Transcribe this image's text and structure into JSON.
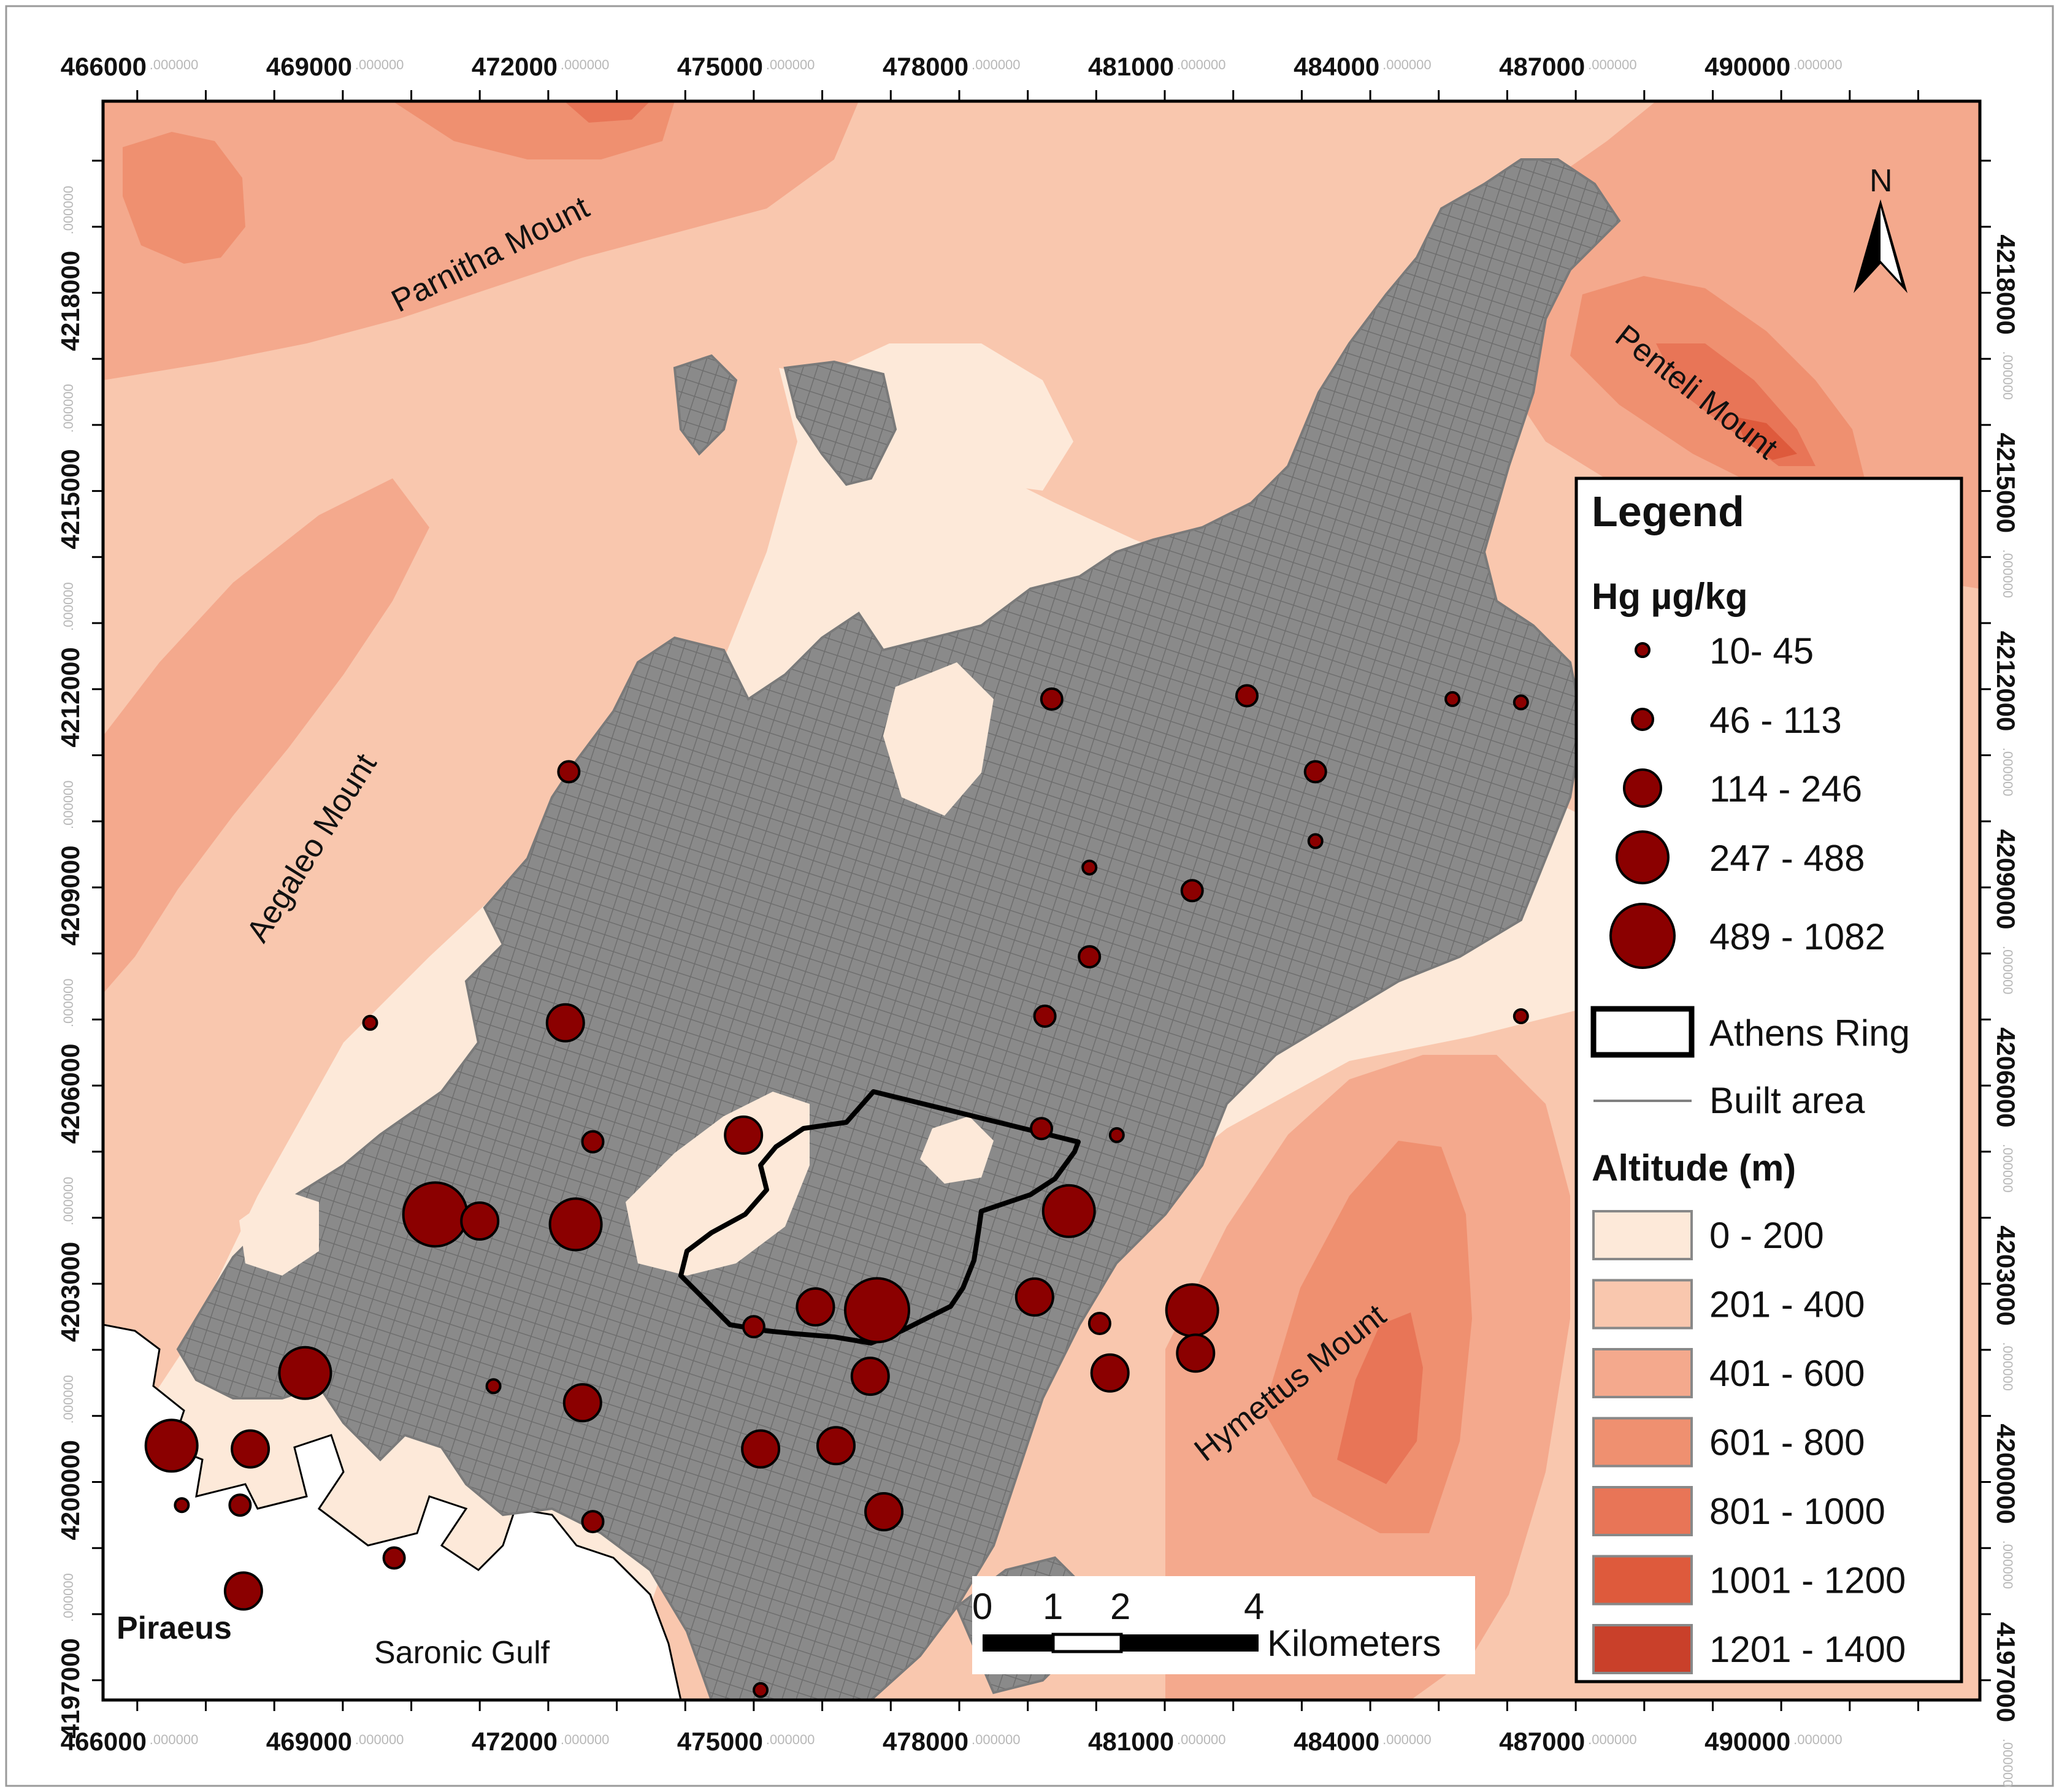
{
  "axis": {
    "x_ticks": [
      466000,
      469000,
      472000,
      475000,
      478000,
      481000,
      484000,
      487000,
      490000
    ],
    "y_ticks": [
      4218000,
      4215000,
      4212000,
      4209000,
      4206000,
      4203000,
      4200000,
      4197000
    ],
    "decimal_suffix": ".000000",
    "x_range": [
      465500,
      492900
    ],
    "y_range": [
      4196700,
      4220900
    ]
  },
  "places": {
    "parnitha": "Parnitha Mount",
    "penteli": "Penteli Mount",
    "aegaleo": "Aegaleo Mount",
    "hymettus": "Hymettus Mount",
    "piraeus": "Piraeus",
    "saronic": "Saronic Gulf"
  },
  "north_label": "N",
  "legend": {
    "title": "Legend",
    "hg_title": "Hg µg/kg",
    "hg_classes": [
      "10- 45",
      "46 - 113",
      "114 - 246",
      "247 - 488",
      "489 - 1082"
    ],
    "ring_label": "Athens Ring",
    "built_label": "Built area",
    "alt_title": "Altitude (m)",
    "alt_classes": [
      {
        "label": "0 - 200",
        "color": "#fde9d9"
      },
      {
        "label": "201 - 400",
        "color": "#f9c7ae"
      },
      {
        "label": "401 - 600",
        "color": "#f4a98d"
      },
      {
        "label": "601 - 800",
        "color": "#ef9070"
      },
      {
        "label": "801 - 1000",
        "color": "#e87557"
      },
      {
        "label": "1001 - 1200",
        "color": "#de5a3c"
      },
      {
        "label": "1201 - 1400",
        "color": "#c9402a"
      }
    ]
  },
  "scalebar": {
    "ticks": [
      "0",
      "1",
      "2",
      "4"
    ],
    "unit": "Kilometers"
  },
  "colors": {
    "hg_fill": "#8b0000",
    "built": "#808080",
    "ring": "#000000"
  },
  "samples": [
    {
      "x": 479350,
      "y": 4211850,
      "cls": 1
    },
    {
      "x": 482200,
      "y": 4211900,
      "cls": 1
    },
    {
      "x": 485200,
      "y": 4211850,
      "cls": 0
    },
    {
      "x": 486200,
      "y": 4211800,
      "cls": 0
    },
    {
      "x": 472300,
      "y": 4210750,
      "cls": 1
    },
    {
      "x": 483200,
      "y": 4210750,
      "cls": 1
    },
    {
      "x": 483200,
      "y": 4209700,
      "cls": 0
    },
    {
      "x": 479900,
      "y": 4209300,
      "cls": 0
    },
    {
      "x": 481400,
      "y": 4208950,
      "cls": 1
    },
    {
      "x": 479900,
      "y": 4207950,
      "cls": 1
    },
    {
      "x": 469400,
      "y": 4206950,
      "cls": 0
    },
    {
      "x": 472250,
      "y": 4206950,
      "cls": 2
    },
    {
      "x": 479250,
      "y": 4207050,
      "cls": 1
    },
    {
      "x": 486200,
      "y": 4207050,
      "cls": 0
    },
    {
      "x": 479200,
      "y": 4205350,
      "cls": 1
    },
    {
      "x": 480300,
      "y": 4205250,
      "cls": 0
    },
    {
      "x": 472650,
      "y": 4205150,
      "cls": 1
    },
    {
      "x": 474850,
      "y": 4205250,
      "cls": 2
    },
    {
      "x": 470350,
      "y": 4204050,
      "cls": 4
    },
    {
      "x": 471000,
      "y": 4203950,
      "cls": 2
    },
    {
      "x": 472400,
      "y": 4203900,
      "cls": 3
    },
    {
      "x": 479600,
      "y": 4204100,
      "cls": 3
    },
    {
      "x": 476800,
      "y": 4202600,
      "cls": 4
    },
    {
      "x": 475900,
      "y": 4202650,
      "cls": 2
    },
    {
      "x": 475000,
      "y": 4202350,
      "cls": 1
    },
    {
      "x": 479100,
      "y": 4202800,
      "cls": 2
    },
    {
      "x": 481400,
      "y": 4202600,
      "cls": 3
    },
    {
      "x": 480050,
      "y": 4202400,
      "cls": 1
    },
    {
      "x": 481450,
      "y": 4201950,
      "cls": 2
    },
    {
      "x": 468450,
      "y": 4201650,
      "cls": 3
    },
    {
      "x": 476700,
      "y": 4201600,
      "cls": 2
    },
    {
      "x": 480200,
      "y": 4201650,
      "cls": 2
    },
    {
      "x": 471200,
      "y": 4201450,
      "cls": 0
    },
    {
      "x": 472500,
      "y": 4201200,
      "cls": 2
    },
    {
      "x": 466500,
      "y": 4200550,
      "cls": 3
    },
    {
      "x": 467650,
      "y": 4200500,
      "cls": 2
    },
    {
      "x": 475100,
      "y": 4200500,
      "cls": 2
    },
    {
      "x": 476200,
      "y": 4200550,
      "cls": 2
    },
    {
      "x": 466650,
      "y": 4199650,
      "cls": 0
    },
    {
      "x": 467500,
      "y": 4199650,
      "cls": 1
    },
    {
      "x": 476900,
      "y": 4199550,
      "cls": 2
    },
    {
      "x": 472650,
      "y": 4199400,
      "cls": 1
    },
    {
      "x": 469750,
      "y": 4198850,
      "cls": 1
    },
    {
      "x": 467550,
      "y": 4198350,
      "cls": 2
    },
    {
      "x": 475100,
      "y": 4196850,
      "cls": 0
    }
  ]
}
